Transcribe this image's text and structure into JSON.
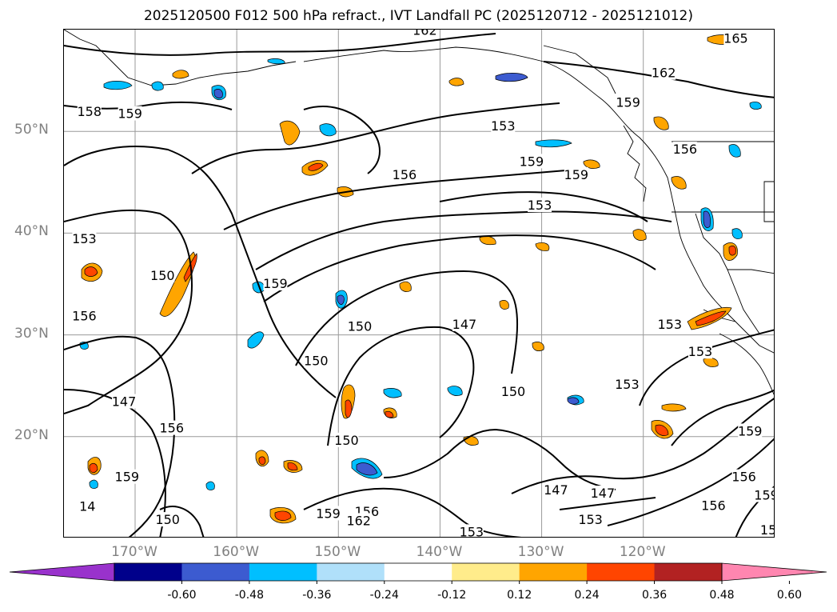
{
  "title": "2025120500 F012 500 hPa refract., IVT Landfall PC (2025120712 - 2025121012)",
  "map": {
    "lat_labels": [
      {
        "text": "50°N",
        "lat": 50
      },
      {
        "text": "40°N",
        "lat": 40
      },
      {
        "text": "30°N",
        "lat": 30
      },
      {
        "text": "20°N",
        "lat": 20
      }
    ],
    "lon_labels": [
      {
        "text": "170°W",
        "lon": -170
      },
      {
        "text": "160°W",
        "lon": -160
      },
      {
        "text": "150°W",
        "lon": -150
      },
      {
        "text": "140°W",
        "lon": -140
      },
      {
        "text": "130°W",
        "lon": -130
      },
      {
        "text": "120°W",
        "lon": -120
      }
    ],
    "extent": {
      "lon_min": -177.0,
      "lon_max": -107.0,
      "lat_min": 10.0,
      "lat_max": 60.0
    },
    "contour_labels": [
      {
        "text": "162",
        "lon": -141.5,
        "lat": 59.9
      },
      {
        "text": "165",
        "lon": -110.9,
        "lat": 59.1
      },
      {
        "text": "162",
        "lon": -118.0,
        "lat": 55.7
      },
      {
        "text": "159",
        "lon": -121.5,
        "lat": 52.8
      },
      {
        "text": "158",
        "lon": -174.5,
        "lat": 51.9
      },
      {
        "text": "159",
        "lon": -170.5,
        "lat": 51.7
      },
      {
        "text": "153",
        "lon": -133.8,
        "lat": 50.5
      },
      {
        "text": "156",
        "lon": -143.5,
        "lat": 45.7
      },
      {
        "text": "159",
        "lon": -131.0,
        "lat": 47.0
      },
      {
        "text": "159",
        "lon": -126.6,
        "lat": 45.7
      },
      {
        "text": "156",
        "lon": -115.9,
        "lat": 48.2
      },
      {
        "text": "153",
        "lon": -130.2,
        "lat": 42.7
      },
      {
        "text": "153",
        "lon": -175.0,
        "lat": 39.4
      },
      {
        "text": "150",
        "lon": -167.3,
        "lat": 35.8
      },
      {
        "text": "159",
        "lon": -156.2,
        "lat": 35.0
      },
      {
        "text": "156",
        "lon": -175.0,
        "lat": 31.8
      },
      {
        "text": "147",
        "lon": -137.6,
        "lat": 31.0
      },
      {
        "text": "150",
        "lon": -147.9,
        "lat": 30.8
      },
      {
        "text": "150",
        "lon": -152.2,
        "lat": 27.4
      },
      {
        "text": "153",
        "lon": -117.4,
        "lat": 31.0
      },
      {
        "text": "153",
        "lon": -114.4,
        "lat": 28.3
      },
      {
        "text": "153",
        "lon": -121.6,
        "lat": 25.1
      },
      {
        "text": "150",
        "lon": -132.8,
        "lat": 24.4
      },
      {
        "text": "147",
        "lon": -171.1,
        "lat": 23.4
      },
      {
        "text": "156",
        "lon": -166.4,
        "lat": 20.8
      },
      {
        "text": "150",
        "lon": -149.2,
        "lat": 19.6
      },
      {
        "text": "159",
        "lon": -170.8,
        "lat": 16.0
      },
      {
        "text": "159",
        "lon": -109.5,
        "lat": 20.5
      },
      {
        "text": "156",
        "lon": -110.1,
        "lat": 16.0
      },
      {
        "text": "147",
        "lon": -128.6,
        "lat": 14.7
      },
      {
        "text": "147",
        "lon": -124.0,
        "lat": 14.4
      },
      {
        "text": "14",
        "lon": -174.7,
        "lat": 13.1
      },
      {
        "text": "159",
        "lon": -107.9,
        "lat": 14.2
      },
      {
        "text": "156",
        "lon": -113.1,
        "lat": 13.2
      },
      {
        "text": "159",
        "lon": -151.0,
        "lat": 12.4
      },
      {
        "text": "156",
        "lon": -147.2,
        "lat": 12.6
      },
      {
        "text": "162",
        "lon": -148.0,
        "lat": 11.7
      },
      {
        "text": "153",
        "lon": -125.2,
        "lat": 11.8
      },
      {
        "text": "150",
        "lon": -166.8,
        "lat": 11.8
      },
      {
        "text": "153",
        "lon": -136.9,
        "lat": 10.6
      },
      {
        "text": "15",
        "lon": -107.7,
        "lat": 10.8
      }
    ]
  },
  "colorbar": {
    "colors": [
      "#9932cc",
      "#00008b",
      "#3c5bd0",
      "#00bfff",
      "#b0e0fa",
      "#ffffff",
      "#ffec8b",
      "#ffa500",
      "#ff4500",
      "#b22222",
      "#ff86b0"
    ],
    "tick_labels": [
      "-0.60",
      "-0.48",
      "-0.36",
      "-0.24",
      "-0.12",
      "0.12",
      "0.24",
      "0.36",
      "0.48",
      "0.60"
    ]
  }
}
